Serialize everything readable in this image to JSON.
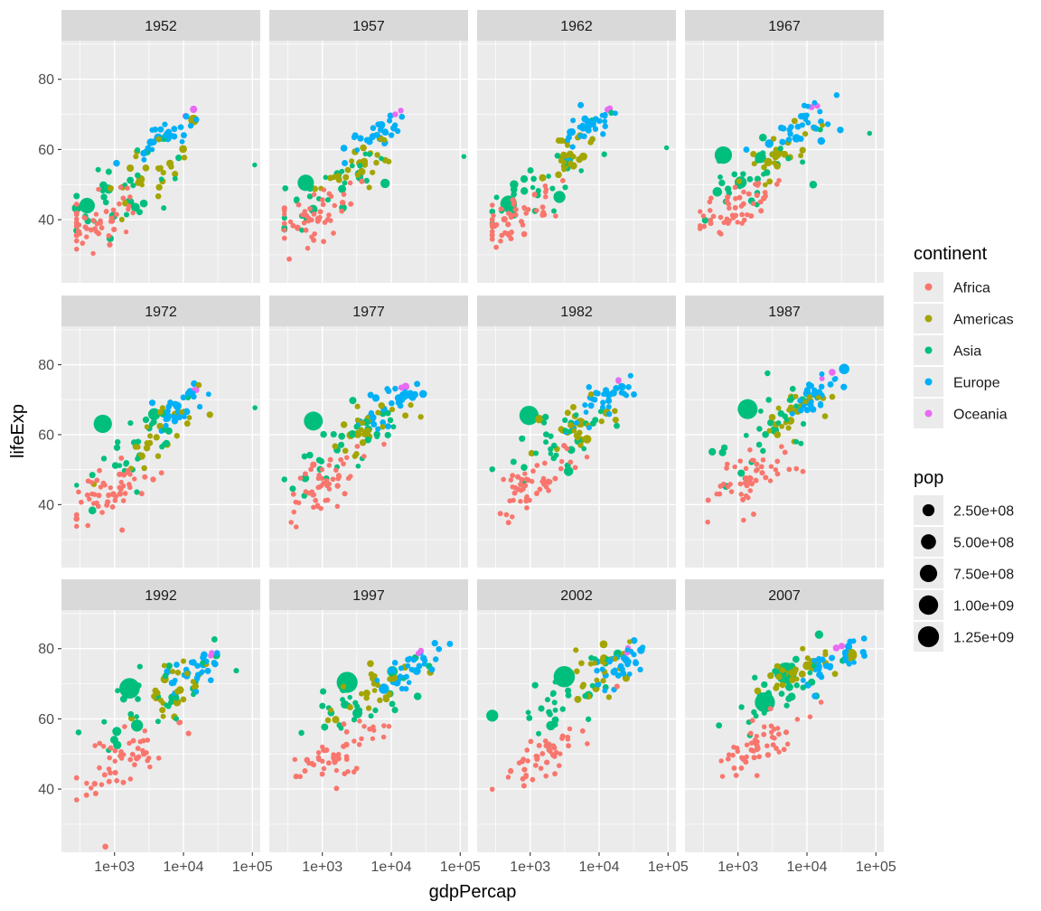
{
  "chart_data": {
    "type": "scatter",
    "title": "",
    "xlabel": "gdpPercap",
    "ylabel": "lifeExp",
    "x_scale": "log10",
    "xlim": [
      170,
      130000
    ],
    "ylim": [
      22,
      91
    ],
    "x_ticks": [
      1000,
      10000,
      100000
    ],
    "x_tick_labels": [
      "1e+03",
      "1e+04",
      "1e+05"
    ],
    "y_ticks": [
      40,
      60,
      80
    ],
    "y_tick_labels": [
      "40",
      "60",
      "80"
    ],
    "facets": [
      "1952",
      "1957",
      "1962",
      "1967",
      "1972",
      "1977",
      "1982",
      "1987",
      "1992",
      "1997",
      "2002",
      "2007"
    ],
    "colors": {
      "Africa": "#F8766D",
      "Americas": "#A3A500",
      "Asia": "#00BF7D",
      "Europe": "#00B0F6",
      "Oceania": "#E76BF3"
    },
    "legend_color": {
      "title": "continent",
      "items": [
        "Africa",
        "Americas",
        "Asia",
        "Europe",
        "Oceania"
      ]
    },
    "legend_size": {
      "title": "pop",
      "items": [
        {
          "label": "2.50e+08",
          "value": 250000000
        },
        {
          "label": "5.00e+08",
          "value": 500000000
        },
        {
          "label": "7.50e+08",
          "value": 750000000
        },
        {
          "label": "1.00e+09",
          "value": 1000000000
        },
        {
          "label": "1.25e+09",
          "value": 1250000000
        }
      ]
    },
    "notable_points": [
      {
        "year": "1952",
        "continent": "Asia",
        "gdpPercap": 400,
        "lifeExp": 44,
        "pop": 556000000
      },
      {
        "year": "1952",
        "continent": "Asia",
        "gdpPercap": 108000,
        "lifeExp": 55.6,
        "pop": 160000
      },
      {
        "year": "1952",
        "continent": "Americas",
        "gdpPercap": 14000,
        "lifeExp": 68.4,
        "pop": 157000000
      },
      {
        "year": "1957",
        "continent": "Asia",
        "gdpPercap": 575,
        "lifeExp": 50.5,
        "pop": 637000000
      },
      {
        "year": "1957",
        "continent": "Asia",
        "gdpPercap": 113000,
        "lifeExp": 58,
        "pop": 210000
      },
      {
        "year": "1962",
        "continent": "Asia",
        "gdpPercap": 487,
        "lifeExp": 44.5,
        "pop": 665000000
      },
      {
        "year": "1962",
        "continent": "Asia",
        "gdpPercap": 95000,
        "lifeExp": 60.5,
        "pop": 300000
      },
      {
        "year": "1967",
        "continent": "Asia",
        "gdpPercap": 612,
        "lifeExp": 58.4,
        "pop": 754000000
      },
      {
        "year": "1967",
        "continent": "Asia",
        "gdpPercap": 80900,
        "lifeExp": 64.6,
        "pop": 580000
      },
      {
        "year": "1972",
        "continent": "Asia",
        "gdpPercap": 676,
        "lifeExp": 63.1,
        "pop": 862000000
      },
      {
        "year": "1972",
        "continent": "Asia",
        "gdpPercap": 109000,
        "lifeExp": 67.7,
        "pop": 840000
      },
      {
        "year": "1977",
        "continent": "Asia",
        "gdpPercap": 741,
        "lifeExp": 63.9,
        "pop": 943000000
      },
      {
        "year": "1982",
        "continent": "Asia",
        "gdpPercap": 962,
        "lifeExp": 65.5,
        "pop": 1000000000
      },
      {
        "year": "1987",
        "continent": "Asia",
        "gdpPercap": 1379,
        "lifeExp": 67.3,
        "pop": 1084000000
      },
      {
        "year": "1992",
        "continent": "Asia",
        "gdpPercap": 1656,
        "lifeExp": 68.7,
        "pop": 1165000000
      },
      {
        "year": "1992",
        "continent": "Africa",
        "gdpPercap": 737,
        "lifeExp": 23.6,
        "pop": 7290000
      },
      {
        "year": "1997",
        "continent": "Asia",
        "gdpPercap": 2289,
        "lifeExp": 70.4,
        "pop": 1230000000
      },
      {
        "year": "2002",
        "continent": "Asia",
        "gdpPercap": 3119,
        "lifeExp": 72,
        "pop": 1280000000
      },
      {
        "year": "2007",
        "continent": "Asia",
        "gdpPercap": 4959,
        "lifeExp": 73,
        "pop": 1319000000
      },
      {
        "year": "2007",
        "continent": "Asia",
        "gdpPercap": 2452,
        "lifeExp": 64.7,
        "pop": 1110000000
      },
      {
        "year": "2007",
        "continent": "Americas",
        "gdpPercap": 42952,
        "lifeExp": 78.2,
        "pop": 301000000
      }
    ]
  }
}
